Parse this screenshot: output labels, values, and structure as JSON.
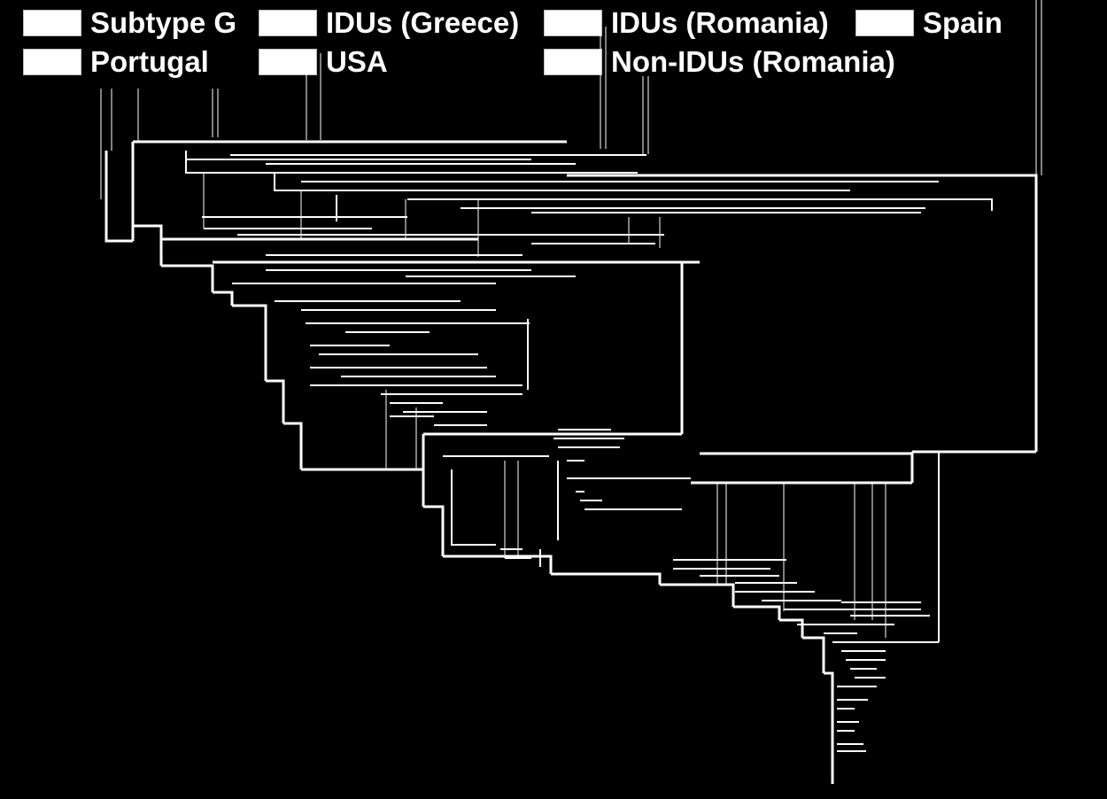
{
  "legend": {
    "items": [
      {
        "label": "Subtype G",
        "color": "#ffffff"
      },
      {
        "label": "IDUs (Greece)",
        "color": "#ffffff"
      },
      {
        "label": "IDUs (Romania)",
        "color": "#ffffff"
      },
      {
        "label": "Spain",
        "color": "#ffffff"
      },
      {
        "label": "Portugal",
        "color": "#ffffff"
      },
      {
        "label": "USA",
        "color": "#ffffff"
      },
      {
        "label": "Non-IDUs (Romania)",
        "color": "#ffffff"
      }
    ]
  },
  "colors": {
    "background": "#000000",
    "branch": "#ffffff"
  }
}
